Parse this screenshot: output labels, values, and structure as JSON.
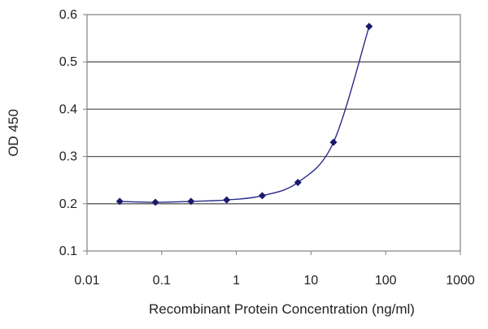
{
  "chart_data": {
    "type": "line",
    "title": "",
    "xlabel": "Recombinant Protein Concentration (ng/ml)",
    "ylabel": "OD 450",
    "xscale": "log",
    "xlim": [
      0.01,
      1000
    ],
    "ylim": [
      0.1,
      0.6
    ],
    "x_ticks": [
      "0.01",
      "0.1",
      "1",
      "10",
      "100",
      "1000"
    ],
    "y_ticks": [
      "0.1",
      "0.2",
      "0.3",
      "0.4",
      "0.5",
      "0.6"
    ],
    "grid": "horizontal",
    "legend": "none",
    "series": [
      {
        "x": [
          0.0274,
          0.0823,
          0.247,
          0.741,
          2.22,
          6.67,
          20,
          60
        ],
        "values": [
          0.205,
          0.203,
          0.205,
          0.208,
          0.217,
          0.245,
          0.33,
          0.575
        ],
        "color": "#2a2a8a",
        "marker": "diamond"
      }
    ]
  }
}
